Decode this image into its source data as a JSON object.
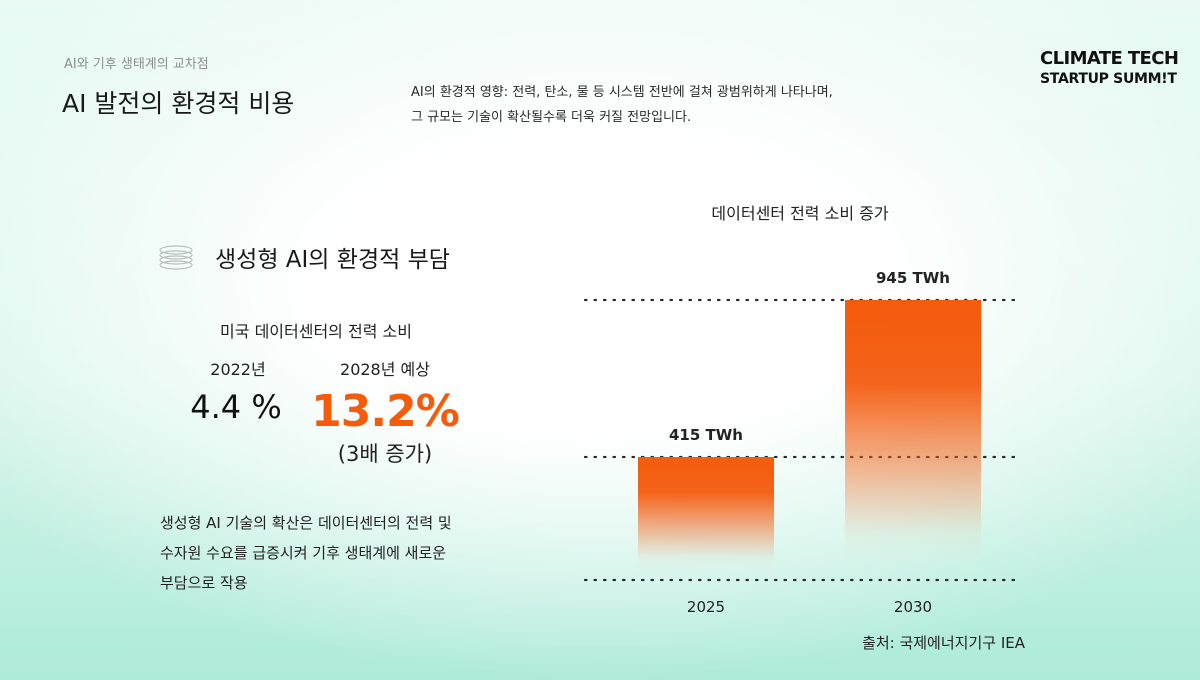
{
  "header": {
    "eyebrow": "AI와 기후 생태계의 교차점",
    "title": "AI 발전의 환경적 비용",
    "lead_lines": [
      "AI의 환경적 영향: 전력, 탄소, 물 등 시스템 전반에 걸쳐 광범위하게 나타나며,",
      "그 규모는 기술이 확산될수록 더욱 커질 전망입니다."
    ]
  },
  "brand": {
    "line1": "CLIMATE TECH",
    "line2": "STARTUP SUMM!T"
  },
  "left_panel": {
    "icon": "stacked-rings-icon",
    "heading": "생성형 AI의 환경적 부담",
    "stat_caption": "미국 데이터센터의 전력 소비",
    "year_2022_label": "2022년",
    "year_2028_label": "2028년 예상",
    "value_2022": "4.4 %",
    "value_2028": "13.2%",
    "growth_note": "(3배 증가)",
    "body_lines": [
      "생성형 AI 기술의 확산은 데이터센터의 전력 및",
      "수자원 수요를 급증시켜 기후 생태계에 새로운",
      "부담으로 작용"
    ]
  },
  "colors": {
    "accent": "#f45b0d",
    "bar_top": "#f45b0d",
    "bar_bottom": "#ffffff",
    "gridline": "#2b2b2b"
  },
  "chart_data": {
    "type": "bar",
    "title": "데이터센터 전력 소비 증가",
    "categories": [
      "2025",
      "2030"
    ],
    "values": [
      415,
      945
    ],
    "value_labels": [
      "415 TWh",
      "945 TWh"
    ],
    "unit": "TWh",
    "ylim": [
      0,
      1000
    ],
    "reference_lines": [
      0,
      415,
      945
    ],
    "grid": false,
    "legend": "none"
  },
  "source": "출처: 국제에너지기구 IEA"
}
